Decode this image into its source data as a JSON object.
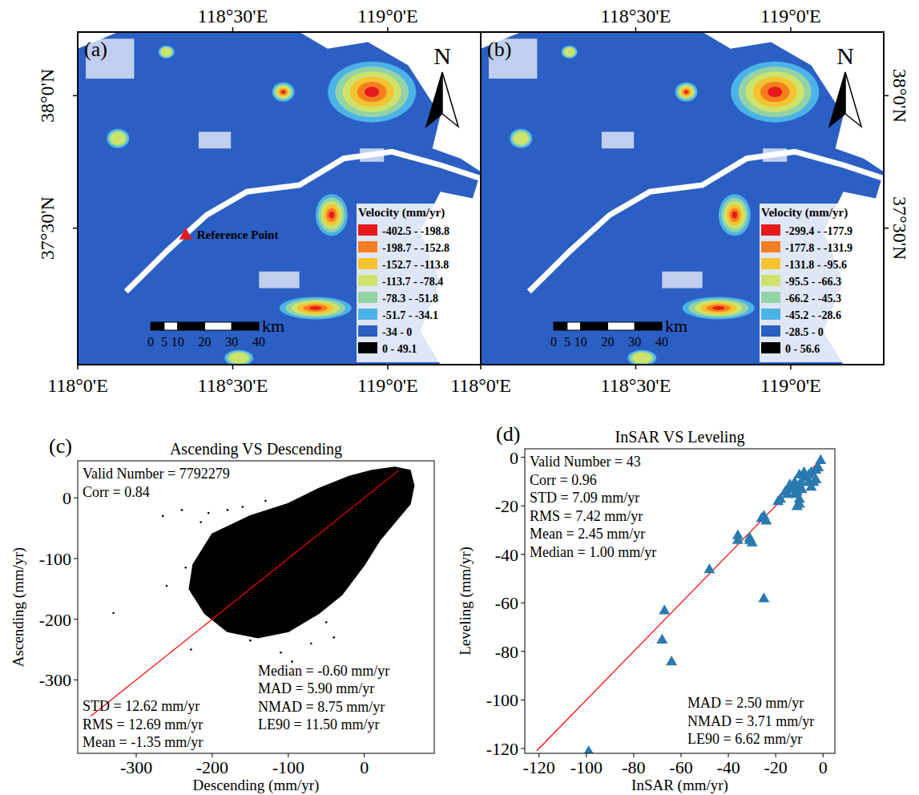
{
  "maps": {
    "type": "map",
    "xlim": [
      118.0,
      119.3
    ],
    "ylim": [
      36.985,
      38.24
    ],
    "xticks": [
      {
        "value": 118.0,
        "label": "118°0'E"
      },
      {
        "value": 118.5,
        "label": "118°30'E"
      },
      {
        "value": 119.0,
        "label": "119°0'E"
      }
    ],
    "yticks": [
      {
        "value": 37.5,
        "label": "37°30'N"
      },
      {
        "value": 38.0,
        "label": "38°0'N"
      }
    ],
    "north_label": "N",
    "scale_bar": {
      "unit": "km",
      "ticks": [
        0,
        5,
        10,
        20,
        30,
        40
      ]
    },
    "panels": [
      {
        "letter": "(a)",
        "legend_title": "Velocity (mm/yr)",
        "classes": [
          {
            "label": "-402.5 - -198.8",
            "color": "#e41a1c"
          },
          {
            "label": "-198.7 - -152.8",
            "color": "#f67e21"
          },
          {
            "label": "-152.7 - -113.8",
            "color": "#f4c430"
          },
          {
            "label": "-113.7 - -78.4",
            "color": "#cde36b"
          },
          {
            "label": "-78.3 - -51.8",
            "color": "#93d3a5"
          },
          {
            "label": "-51.7 - -34.1",
            "color": "#4cb3e8"
          },
          {
            "label": "-34 - 0",
            "color": "#2c5fc4"
          },
          {
            "label": "0 - 49.1",
            "color": "#000000"
          }
        ],
        "reference_point": {
          "label": "Reference Point",
          "lon": 118.348,
          "lat": 37.479,
          "color": "#e41a1c"
        }
      },
      {
        "letter": "(b)",
        "legend_title": "Velocity (mm/yr)",
        "classes": [
          {
            "label": "-299.4 - -177.9",
            "color": "#e41a1c"
          },
          {
            "label": "-177.8 - -131.9",
            "color": "#f67e21"
          },
          {
            "label": "-131.8 - -95.6",
            "color": "#f4c430"
          },
          {
            "label": "-95.5 - -66.3",
            "color": "#cde36b"
          },
          {
            "label": "-66.2 - -45.3",
            "color": "#93d3a5"
          },
          {
            "label": "-45.2 - -28.6",
            "color": "#4cb3e8"
          },
          {
            "label": "-28.5 - 0",
            "color": "#2c5fc4"
          },
          {
            "label": "0 - 56.6",
            "color": "#000000"
          }
        ]
      }
    ]
  },
  "chart_data": [
    {
      "type": "scatter",
      "letter": "(c)",
      "title": "Ascending VS Descending",
      "x_label": "Descending (mm/yr)",
      "y_label": "Ascending (mm/yr)",
      "xlim": [
        -377,
        92
      ],
      "ylim": [
        -421,
        61
      ],
      "xticks": [
        -300,
        -200,
        -100,
        0
      ],
      "yticks": [
        -300,
        -200,
        -100,
        0
      ],
      "color": "#000000",
      "marker": "circle",
      "cloud": {
        "x": [
          -225,
          -200,
          -150,
          -100,
          -60,
          -20,
          10,
          40,
          60,
          65,
          60,
          40,
          20,
          0,
          -30,
          -60,
          -100,
          -140,
          -180,
          -210,
          -230
        ],
        "y": [
          -110,
          -60,
          -30,
          -10,
          15,
          35,
          45,
          50,
          45,
          20,
          -10,
          -40,
          -70,
          -110,
          -160,
          -190,
          -220,
          -230,
          -220,
          -190,
          -150
        ]
      },
      "outliers": {
        "x": [
          -330,
          -265,
          -240,
          -235,
          -228,
          -215,
          -205,
          -180,
          -160,
          -130,
          -110,
          -95,
          -70,
          -50,
          -40,
          -260,
          -225,
          -150,
          -85
        ],
        "y": [
          -190,
          -30,
          -20,
          -115,
          -250,
          -40,
          -25,
          -20,
          -15,
          -5,
          -255,
          -270,
          -240,
          -205,
          -230,
          -145,
          -160,
          -235,
          -180
        ]
      },
      "reference_line": {
        "x": [
          -360,
          45
        ],
        "y": [
          -360,
          45
        ],
        "color": "#ff0000"
      },
      "stats_top_left": [
        "Valid Number = 7792279",
        "Corr = 0.84"
      ],
      "stats_bottom_left": [
        "STD = 12.62 mm/yr",
        "RMS = 12.69 mm/yr",
        "Mean = -1.35 mm/yr"
      ],
      "stats_bottom_right": [
        "Median = -0.60 mm/yr",
        "MAD = 5.90 mm/yr",
        "NMAD = 8.75 mm/yr",
        "LE90 = 11.50 mm/yr"
      ]
    },
    {
      "type": "scatter",
      "letter": "(d)",
      "title": "InSAR VS Leveling",
      "x_label": "InSAR (mm/yr)",
      "y_label": "Leveling (mm/yr)",
      "xlim": [
        -126,
        5
      ],
      "ylim": [
        -122,
        3.5
      ],
      "xticks": [
        -120,
        -100,
        -80,
        -60,
        -40,
        -20,
        0
      ],
      "yticks": [
        -120,
        -100,
        -80,
        -60,
        -40,
        -20,
        0
      ],
      "color": "#2a7ab0",
      "marker": "triangle",
      "x": [
        -1,
        -5,
        -8,
        -10,
        -4,
        -6,
        -3,
        -5,
        -7,
        -10,
        -12,
        -13,
        -11,
        -10,
        -11,
        -10,
        -12,
        -14,
        -15,
        -18,
        -19,
        -24,
        -25,
        -26,
        -25,
        -31,
        -30,
        -31,
        -36,
        -36,
        -48,
        -67,
        -68,
        -64,
        -99,
        -9,
        -6,
        -14,
        -12,
        -16,
        -9,
        -3,
        -2
      ],
      "values": [
        -1,
        -6,
        -6,
        -7,
        -10,
        -10,
        -9,
        -12,
        -8,
        -11,
        -12,
        -13,
        -14,
        -17,
        -20,
        -19,
        -15,
        -12,
        -15,
        -17,
        -18,
        -26,
        -24,
        -25,
        -58,
        -33,
        -35,
        -34,
        -32,
        -34,
        -46,
        -63,
        -75,
        -84,
        -121,
        -10,
        -7,
        -11,
        -10,
        -14,
        -13,
        -5,
        -4
      ],
      "reference_line": {
        "x": [
          -121,
          -1
        ],
        "y": [
          -121,
          -1
        ],
        "color": "#ff0000"
      },
      "stats_top_left": [
        "Valid Number = 43",
        "Corr = 0.96",
        "STD = 7.09 mm/yr",
        "RMS = 7.42 mm/yr",
        "Mean = 2.45 mm/yr",
        "Median = 1.00 mm/yr"
      ],
      "stats_bottom_right": [
        "MAD = 2.50 mm/yr",
        "NMAD = 3.71 mm/yr",
        "LE90 = 6.62 mm/yr"
      ]
    }
  ]
}
